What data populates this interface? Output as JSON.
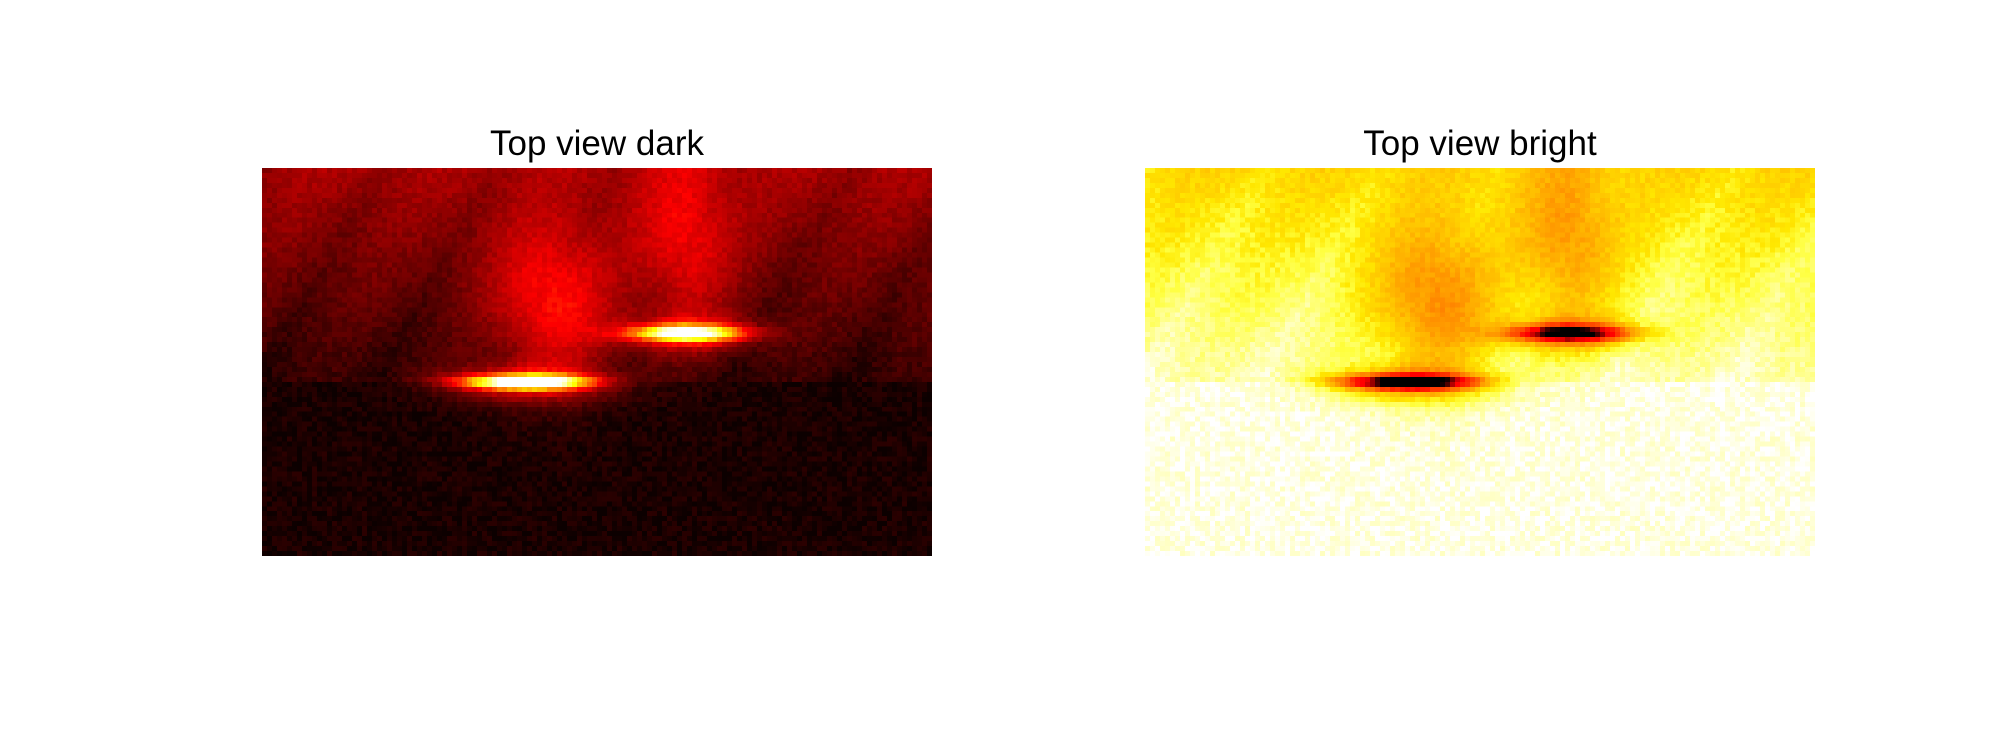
{
  "figure": {
    "panels": [
      {
        "title": "Top view dark",
        "colormap": "hot",
        "background": "#0c0000"
      },
      {
        "title": "Top view bright",
        "colormap": "inverted-hot",
        "background": "#ffffff"
      }
    ]
  }
}
